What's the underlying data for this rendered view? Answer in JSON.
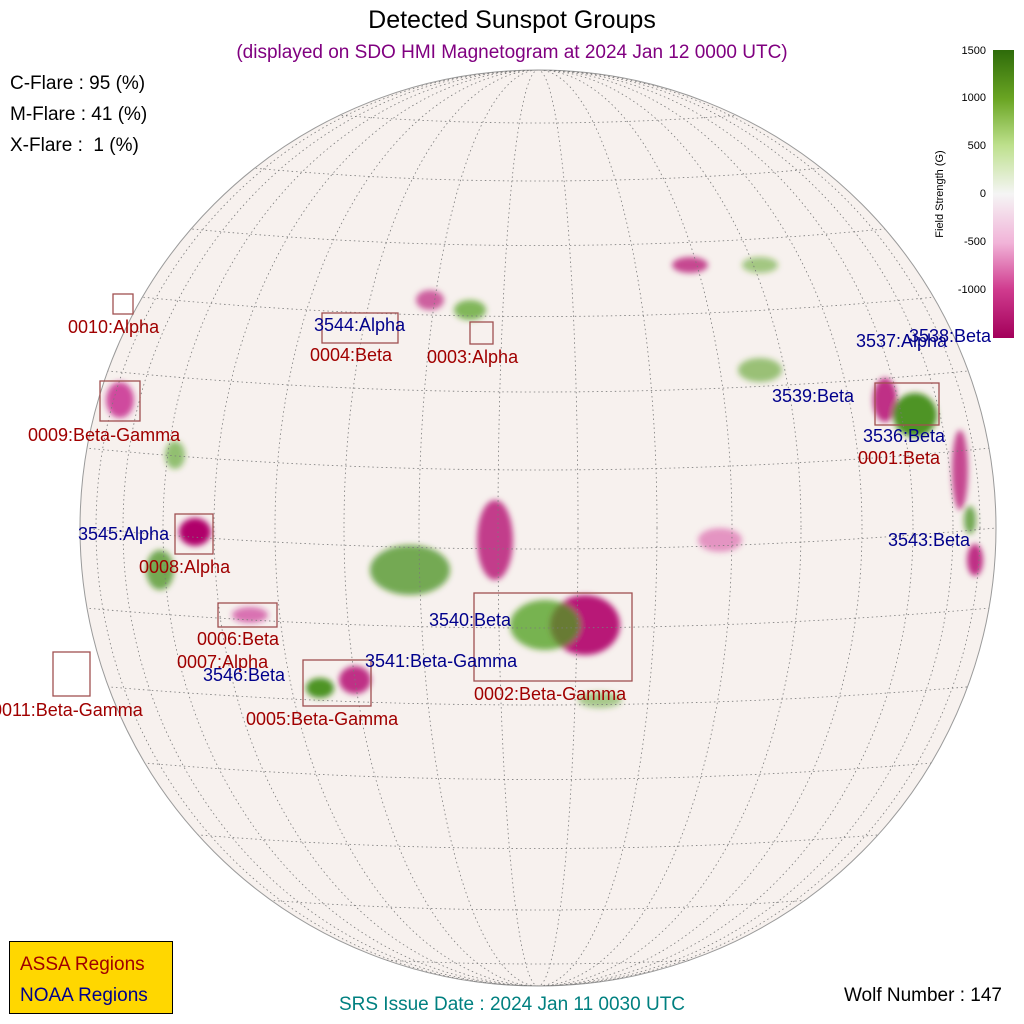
{
  "title": "Detected Sunspot Groups",
  "subtitle": "(displayed on SDO HMI Magnetogram at 2024 Jan 12 0000 UTC)",
  "flare": {
    "c": "C-Flare : 95 (%)",
    "m": "M-Flare : 41 (%)",
    "x": "X-Flare :  1 (%)"
  },
  "colorbar": {
    "title": "Field Strength (G)",
    "ticks": [
      "1500",
      "1000",
      "500",
      "0",
      "-500",
      "-1000"
    ]
  },
  "legend": {
    "assa": "ASSA Regions",
    "noaa": "NOAA Regions"
  },
  "wolf_number": "Wolf Number : 147",
  "srs_issue": "SRS Issue Date : 2024 Jan 11 0030 UTC",
  "regions": {
    "assa": [
      "0010:Alpha",
      "0004:Beta",
      "0003:Alpha",
      "0009:Beta-Gamma",
      "0001:Beta",
      "0008:Alpha",
      "0006:Beta",
      "0007:Alpha",
      "0011:Beta-Gamma",
      "0005:Beta-Gamma",
      "0002:Beta-Gamma"
    ],
    "noaa": [
      "3544:Alpha",
      "3537:Alpha",
      "3538:Beta",
      "3539:Beta",
      "3536:Beta",
      "3545:Alpha",
      "3543:Beta",
      "3540:Beta",
      "3541:Beta-Gamma",
      "3546:Beta"
    ]
  },
  "colors": {
    "assa": "#a00000",
    "noaa": "#00008b",
    "positive_field": "#3a8a12",
    "negative_field": "#b0006a",
    "legend_bg": "#ffd700"
  }
}
